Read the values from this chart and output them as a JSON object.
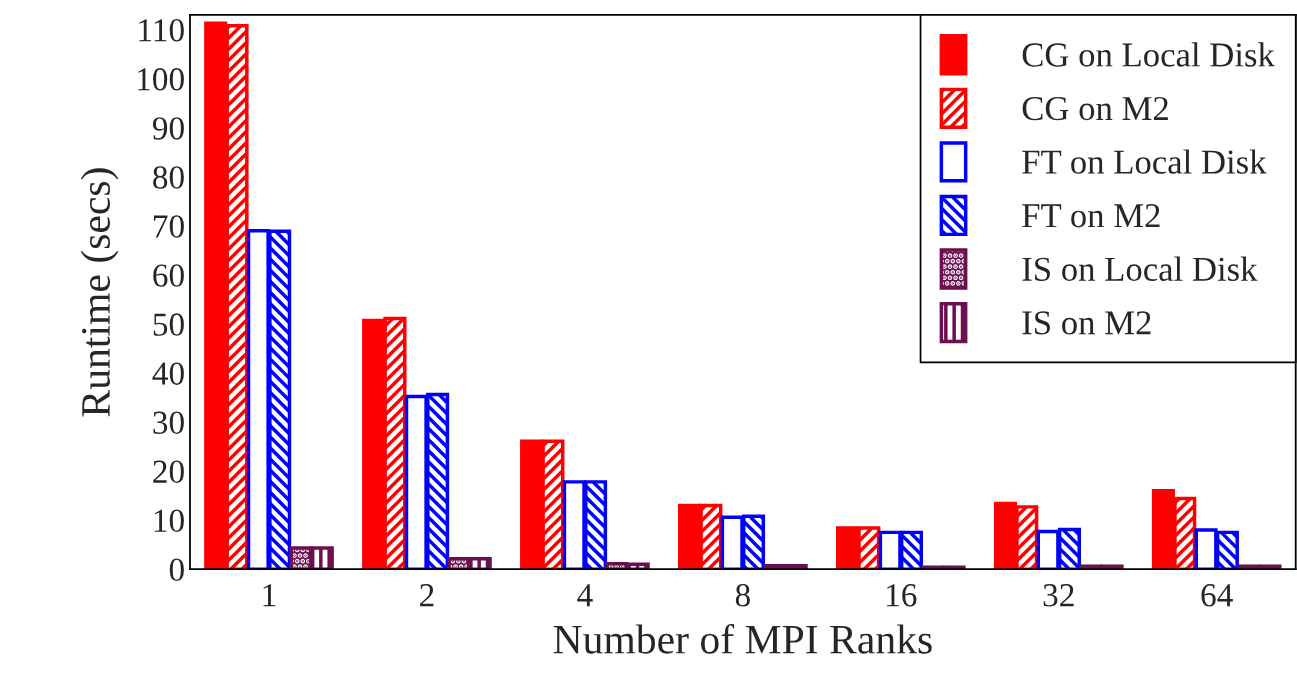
{
  "chart_data": {
    "type": "bar",
    "xlabel": "Number of MPI Ranks",
    "ylabel": "Runtime (secs)",
    "categories": [
      "1",
      "2",
      "4",
      "8",
      "16",
      "32",
      "64"
    ],
    "series": [
      {
        "name": "CG on Local Disk",
        "color": "#ff0000",
        "values": [
          111.3,
          50.7,
          26.1,
          13.0,
          8.4,
          13.4,
          16.0
        ]
      },
      {
        "name": "CG on M2",
        "color": "#ff0000",
        "values": [
          110.8,
          51.1,
          26.1,
          13.0,
          8.4,
          12.7,
          14.4
        ]
      },
      {
        "name": "FT on Local Disk",
        "color": "#0000ff",
        "values": [
          69.0,
          35.2,
          17.8,
          10.6,
          7.5,
          7.7,
          8.0
        ]
      },
      {
        "name": "FT on M2",
        "color": "#0000ff",
        "values": [
          68.9,
          35.6,
          17.8,
          10.8,
          7.5,
          8.1,
          7.5
        ]
      },
      {
        "name": "IS on Local Disk",
        "color": "#6b0f4f",
        "values": [
          4.3,
          2.1,
          1.1,
          0.7,
          0.4,
          0.6,
          0.6
        ]
      },
      {
        "name": "IS on M2",
        "color": "#6b0f4f",
        "values": [
          4.3,
          2.1,
          1.0,
          0.7,
          0.4,
          0.6,
          0.6
        ]
      }
    ],
    "ylim": [
      0,
      113
    ],
    "yticks": [
      0,
      10,
      20,
      30,
      40,
      50,
      60,
      70,
      80,
      90,
      100,
      110
    ],
    "grid": false,
    "legend": "top right"
  }
}
